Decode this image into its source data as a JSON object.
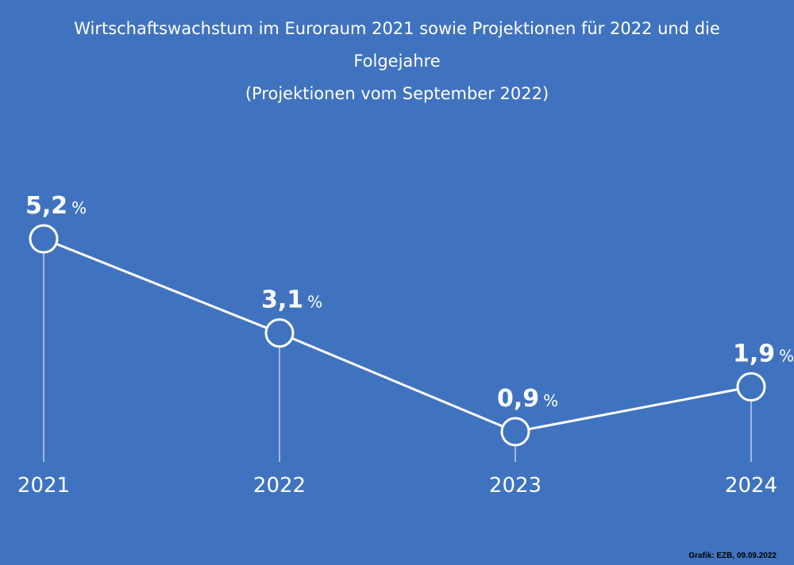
{
  "title_line1": "Wirtschaftswachstum im Euroraum 2021 sowie Projektionen für 2022 und die",
  "title_line2": "Folgejahre",
  "subtitle": "(Projektionen vom September 2022)",
  "source": "Grafik: EZB, 09.09.2022",
  "colors": {
    "background": "#4073bf",
    "line": "#ffffff",
    "text": "#ffffff"
  },
  "chart_data": {
    "type": "line",
    "title": "Wirtschaftswachstum im Euroraum 2021 sowie Projektionen für 2022 und die Folgejahre",
    "subtitle": "(Projektionen vom September 2022)",
    "categories": [
      "2021",
      "2022",
      "2023",
      "2024"
    ],
    "values": [
      5.2,
      3.1,
      0.9,
      1.9
    ],
    "value_labels": [
      "5,2",
      "3,1",
      "0,9",
      "1,9"
    ],
    "unit": "%",
    "xlabel": "",
    "ylabel": "",
    "grid": false,
    "legend": "none"
  }
}
